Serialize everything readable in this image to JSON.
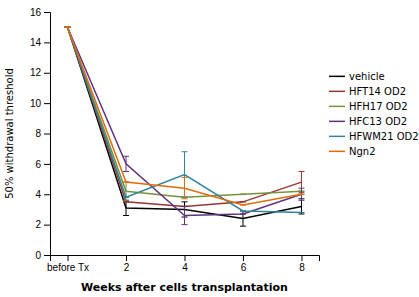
{
  "chart_data": {
    "type": "line",
    "x_label": "Weeks after cells transplantation",
    "y_label": "50% withdrawal threshold",
    "categories": [
      "before Tx",
      "2",
      "4",
      "6",
      "8"
    ],
    "series": [
      {
        "name": "vehicle",
        "color": "#000000",
        "values": [
          15.0,
          3.1,
          3.0,
          2.4,
          3.2
        ],
        "errors": [
          0,
          0.5,
          0.5,
          0.5,
          0.5
        ]
      },
      {
        "name": "HFT14 OD2",
        "color": "#943634",
        "values": [
          15.0,
          3.5,
          3.2,
          3.5,
          4.8
        ],
        "errors": [
          0,
          0,
          0,
          0,
          0.7
        ]
      },
      {
        "name": "HFH17 OD2",
        "color": "#76923c",
        "values": [
          15.0,
          4.2,
          3.8,
          4.0,
          4.2
        ],
        "errors": [
          0,
          0.6,
          0,
          0,
          0
        ]
      },
      {
        "name": "HFC13 OD2",
        "color": "#5f3280",
        "values": [
          15.0,
          6.0,
          2.6,
          2.7,
          4.0
        ],
        "errors": [
          0,
          0.5,
          0.6,
          0,
          0.4
        ]
      },
      {
        "name": "HFWM21 OD2",
        "color": "#31849b",
        "values": [
          15.0,
          3.8,
          5.3,
          2.9,
          2.8
        ],
        "errors": [
          0,
          0,
          1.5,
          0,
          0
        ]
      },
      {
        "name": "Ngn2",
        "color": "#e36c09",
        "values": [
          15.0,
          4.8,
          4.4,
          3.3,
          4.0
        ],
        "errors": [
          0,
          0,
          0.7,
          0,
          0
        ]
      }
    ],
    "ylim": [
      0,
      16
    ],
    "yticks": [
      0,
      2,
      4,
      6,
      8,
      10,
      12,
      14,
      16
    ],
    "grid": false,
    "legend": "right"
  }
}
